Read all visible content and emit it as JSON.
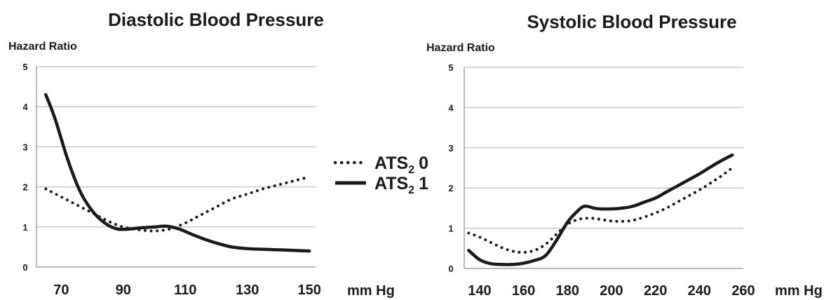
{
  "legend": [
    {
      "base": "ATS",
      "sub": "2",
      "value": "0",
      "style": "dotted"
    },
    {
      "base": "ATS",
      "sub": "2",
      "value": "1",
      "style": "solid"
    }
  ],
  "chart_data": [
    {
      "type": "line",
      "title": "Diastolic Blood Pressure",
      "ylabel": "Hazard Ratio",
      "xunit": "mm Hg",
      "xlim": [
        62,
        152
      ],
      "ylim": [
        0,
        5
      ],
      "xticks": [
        "70",
        "90",
        "110",
        "130",
        "150"
      ],
      "yticks": [
        "0",
        "1",
        "2",
        "3",
        "4",
        "5"
      ],
      "grid": true,
      "series": [
        {
          "name": "ATS2 0",
          "style": "dotted",
          "color": "#1a1a1a",
          "x": [
            65,
            70,
            75,
            80,
            85,
            90,
            95,
            100,
            105,
            110,
            115,
            120,
            125,
            130,
            135,
            140,
            145,
            150
          ],
          "y": [
            1.95,
            1.75,
            1.55,
            1.35,
            1.15,
            1.0,
            0.93,
            0.9,
            0.95,
            1.1,
            1.3,
            1.5,
            1.7,
            1.82,
            1.95,
            2.05,
            2.15,
            2.25
          ]
        },
        {
          "name": "ATS2 1",
          "style": "solid",
          "color": "#1a1a1a",
          "x": [
            65,
            68,
            72,
            76,
            80,
            84,
            88,
            92,
            96,
            100,
            104,
            108,
            112,
            116,
            120,
            125,
            130,
            140,
            150
          ],
          "y": [
            4.3,
            3.7,
            2.7,
            1.9,
            1.4,
            1.1,
            0.95,
            0.95,
            0.98,
            1.0,
            1.02,
            0.95,
            0.82,
            0.7,
            0.6,
            0.5,
            0.46,
            0.43,
            0.4
          ]
        }
      ]
    },
    {
      "type": "line",
      "title": "Systolic Blood Pressure",
      "ylabel": "Hazard Ratio",
      "xunit": "mm Hg",
      "xlim": [
        133,
        260
      ],
      "ylim": [
        0,
        5
      ],
      "xticks": [
        "140",
        "160",
        "180",
        "200",
        "220",
        "240",
        "260"
      ],
      "yticks": [
        "0",
        "1",
        "2",
        "3",
        "4",
        "5"
      ],
      "grid": true,
      "series": [
        {
          "name": "ATS2 0",
          "style": "dotted",
          "color": "#1a1a1a",
          "x": [
            135,
            140,
            145,
            150,
            155,
            160,
            165,
            170,
            175,
            180,
            185,
            190,
            195,
            200,
            205,
            210,
            215,
            220,
            225,
            230,
            235,
            240,
            245,
            250,
            255
          ],
          "y": [
            0.88,
            0.78,
            0.65,
            0.52,
            0.43,
            0.4,
            0.45,
            0.6,
            0.85,
            1.1,
            1.22,
            1.25,
            1.22,
            1.18,
            1.17,
            1.2,
            1.28,
            1.38,
            1.5,
            1.65,
            1.8,
            1.95,
            2.12,
            2.3,
            2.5
          ]
        },
        {
          "name": "ATS2 1",
          "style": "solid",
          "color": "#1a1a1a",
          "x": [
            135,
            140,
            145,
            150,
            155,
            160,
            165,
            170,
            175,
            180,
            185,
            188,
            192,
            195,
            200,
            205,
            210,
            215,
            220,
            225,
            230,
            235,
            240,
            245,
            250,
            255
          ],
          "y": [
            0.45,
            0.22,
            0.12,
            0.1,
            0.1,
            0.13,
            0.2,
            0.32,
            0.7,
            1.15,
            1.45,
            1.55,
            1.5,
            1.48,
            1.48,
            1.5,
            1.55,
            1.65,
            1.75,
            1.9,
            2.05,
            2.2,
            2.35,
            2.52,
            2.68,
            2.82
          ]
        }
      ]
    }
  ]
}
